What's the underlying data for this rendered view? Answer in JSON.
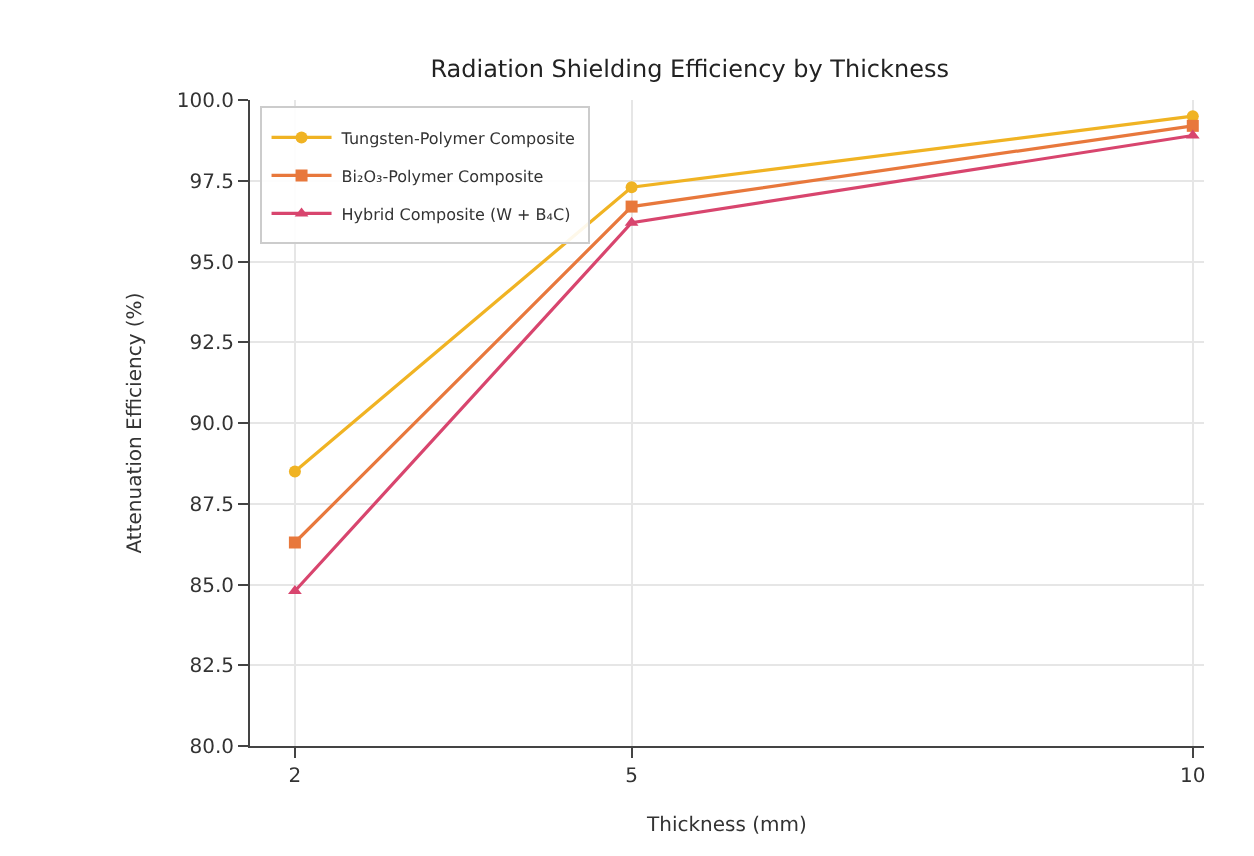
{
  "chart_data": {
    "type": "line",
    "title": "Radiation Shielding Efficiency by Thickness",
    "xlabel": "Thickness (mm)",
    "ylabel": "Attenuation Efficiency (%)",
    "x": [
      2,
      5,
      10
    ],
    "series": [
      {
        "name": "Tungsten-Polymer Composite",
        "color": "#f0b323",
        "marker": "circle",
        "values": [
          88.5,
          97.3,
          99.5
        ]
      },
      {
        "name": "Bi₂O₃-Polymer Composite",
        "color": "#e8783c",
        "marker": "square",
        "values": [
          86.3,
          96.7,
          99.2
        ]
      },
      {
        "name": "Hybrid Composite (W + B₄C)",
        "color": "#d8456e",
        "marker": "triangle",
        "values": [
          84.8,
          96.2,
          98.9
        ]
      }
    ],
    "xlim": [
      1.6,
      10.1
    ],
    "xticks": [
      2,
      5,
      10
    ],
    "ylim": [
      80,
      100
    ],
    "yticks": [
      {
        "value": 80,
        "label": "80.0"
      },
      {
        "value": 82.5,
        "label": "82.5"
      },
      {
        "value": 85,
        "label": "85.0"
      },
      {
        "value": 87.5,
        "label": "87.5"
      },
      {
        "value": 90,
        "label": "90.0"
      },
      {
        "value": 92.5,
        "label": "92.5"
      },
      {
        "value": 95,
        "label": "95.0"
      },
      {
        "value": 97.5,
        "label": "97.5"
      },
      {
        "value": 100,
        "label": "100.0"
      }
    ],
    "grid": true,
    "legend": "top left",
    "line_style": "solid"
  }
}
